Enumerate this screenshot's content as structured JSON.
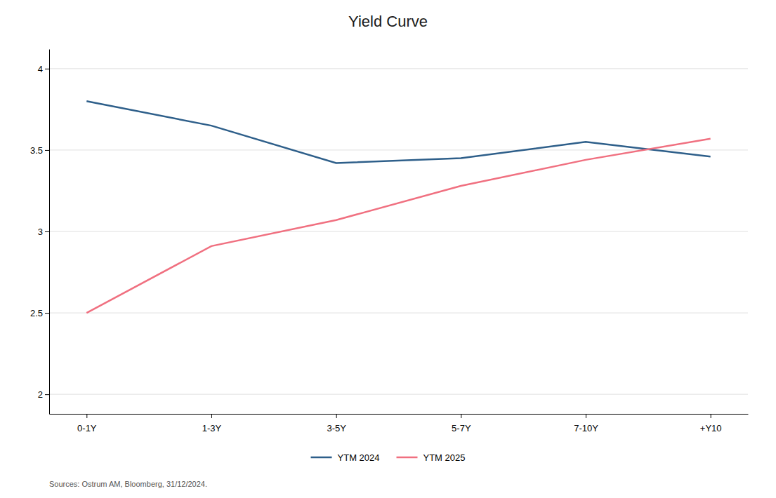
{
  "chart_data": {
    "type": "line",
    "title": "Yield Curve",
    "categories": [
      "0-1Y",
      "1-3Y",
      "3-5Y",
      "5-7Y",
      "7-10Y",
      "+Y10"
    ],
    "series": [
      {
        "name": "YTM 2024",
        "color": "#2e5f8a",
        "values": [
          3.8,
          3.65,
          3.42,
          3.45,
          3.55,
          3.46
        ]
      },
      {
        "name": "YTM 2025",
        "color": "#f07080",
        "values": [
          2.5,
          2.91,
          3.07,
          3.28,
          3.44,
          3.57
        ]
      }
    ],
    "ylim": [
      1.88,
      4.12
    ],
    "yticks": [
      2,
      2.5,
      3,
      3.5,
      4
    ],
    "grid": true,
    "legend": "bottom",
    "annotations": [
      "Sources: Ostrum AM, Bloomberg, 31/12/2024."
    ]
  }
}
